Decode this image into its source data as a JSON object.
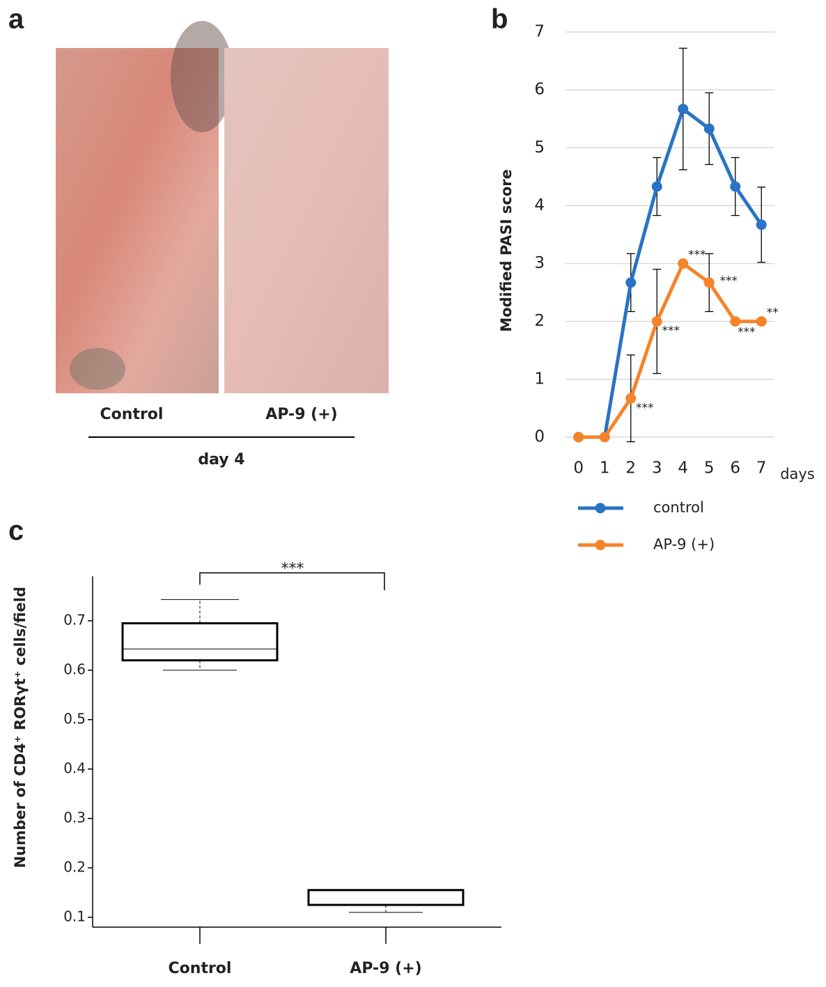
{
  "panels": {
    "a": "a",
    "b": "b",
    "c": "c"
  },
  "photo": {
    "left_label": "Control",
    "right_label": "AP-9 (+)",
    "group_label": "day 4"
  },
  "chart_data": [
    {
      "type": "line",
      "ylabel": "Modified PASI score",
      "xlabel": "days",
      "x": [
        0,
        1,
        2,
        3,
        4,
        5,
        6,
        7
      ],
      "xlim": [
        -0.5,
        7.5
      ],
      "xticks": [
        0,
        1,
        2,
        3,
        4,
        5,
        6,
        7
      ],
      "ylim": [
        0,
        7
      ],
      "yticks": [
        0,
        1,
        2,
        3,
        4,
        5,
        6,
        7
      ],
      "grid": true,
      "series": [
        {
          "name": "control",
          "color": "#2a73c5",
          "values": [
            0,
            0,
            2.67,
            4.33,
            5.67,
            5.33,
            4.33,
            3.67
          ],
          "errors": [
            0,
            0,
            0.5,
            0.5,
            1.05,
            0.62,
            0.5,
            0.65
          ]
        },
        {
          "name": "AP-9 (+)",
          "color": "#f5832a",
          "values": [
            0,
            0,
            0.67,
            2,
            3,
            2.67,
            2,
            2
          ],
          "errors": [
            0,
            0,
            0.75,
            0.9,
            0,
            0.5,
            0,
            0
          ],
          "annotations": [
            null,
            null,
            "***",
            "***",
            "***",
            "***",
            "***",
            "**"
          ]
        }
      ]
    },
    {
      "type": "box",
      "ylabel": "Number of CD4⁺ RORγt⁺ cells/field",
      "categories": [
        "Control",
        "AP-9 (+)"
      ],
      "boxes": [
        {
          "min": 0.6,
          "q1": 0.62,
          "median": 0.643,
          "q3": 0.695,
          "max": 0.743
        },
        {
          "min": 0.11,
          "q1": 0.125,
          "median": 0.125,
          "q3": 0.155,
          "max": 0.155
        }
      ],
      "ylim": [
        0.08,
        0.79
      ],
      "yticks": [
        0.1,
        0.2,
        0.3,
        0.4,
        0.5,
        0.6,
        0.7
      ],
      "significance": "***"
    }
  ]
}
